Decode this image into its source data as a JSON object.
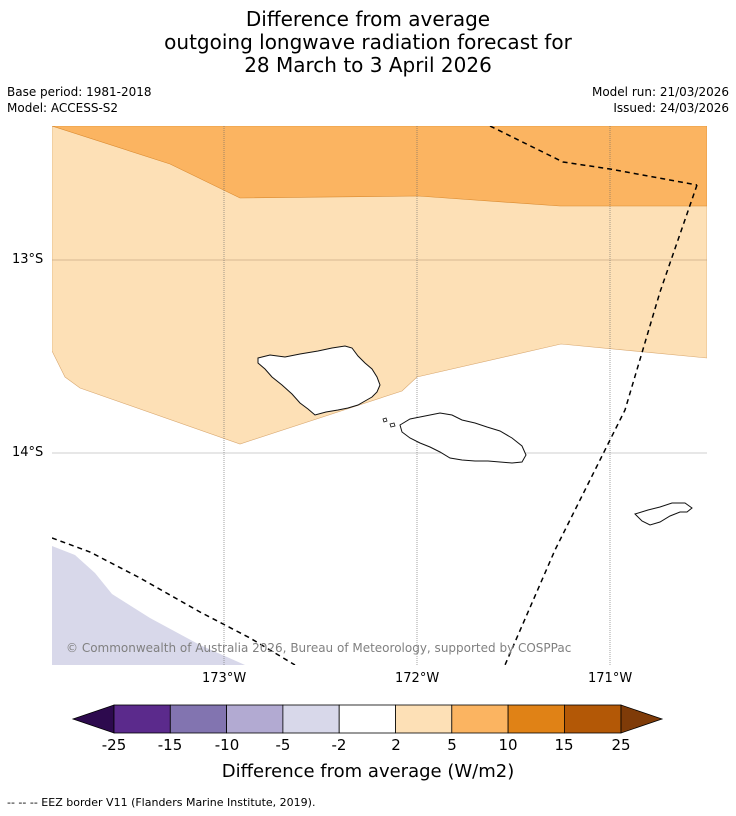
{
  "title": {
    "line1": "Difference from average",
    "line2": "outgoing longwave radiation forecast for",
    "line3": "28 March to 3 April 2026"
  },
  "meta": {
    "base_period": "Base period: 1981-2018",
    "model": "Model: ACCESS-S2",
    "model_run": "Model run: 21/03/2026",
    "issued": "Issued: 24/03/2026"
  },
  "map": {
    "lat_labels": [
      "13°S",
      "14°S"
    ],
    "lon_labels": [
      "173°W",
      "172°W",
      "171°W"
    ],
    "copyright": "© Commonwealth of Australia 2026, Bureau of Meteorology, supported by COSPPac",
    "land_features": [
      "Savai'i",
      "Upolu",
      "Tutuila"
    ],
    "layers": [
      "anomaly-fill",
      "gridlines",
      "coastline",
      "eez-border"
    ]
  },
  "colorbar": {
    "ticks": [
      "-25",
      "-15",
      "-10",
      "-5",
      "-2",
      "2",
      "5",
      "10",
      "15",
      "25"
    ],
    "colors": [
      "#2d0a4e",
      "#5b2a8c",
      "#8274b0",
      "#b2aad2",
      "#d8d8ea",
      "#ffffff",
      "#fde0b6",
      "#fbb461",
      "#e08216",
      "#b35806",
      "#7f3b08"
    ],
    "label": "Difference from average (W/m2)"
  },
  "footer": {
    "eez_legend": "--  --  -- EEZ border V11 (Flanders Marine Institute, 2019)."
  }
}
